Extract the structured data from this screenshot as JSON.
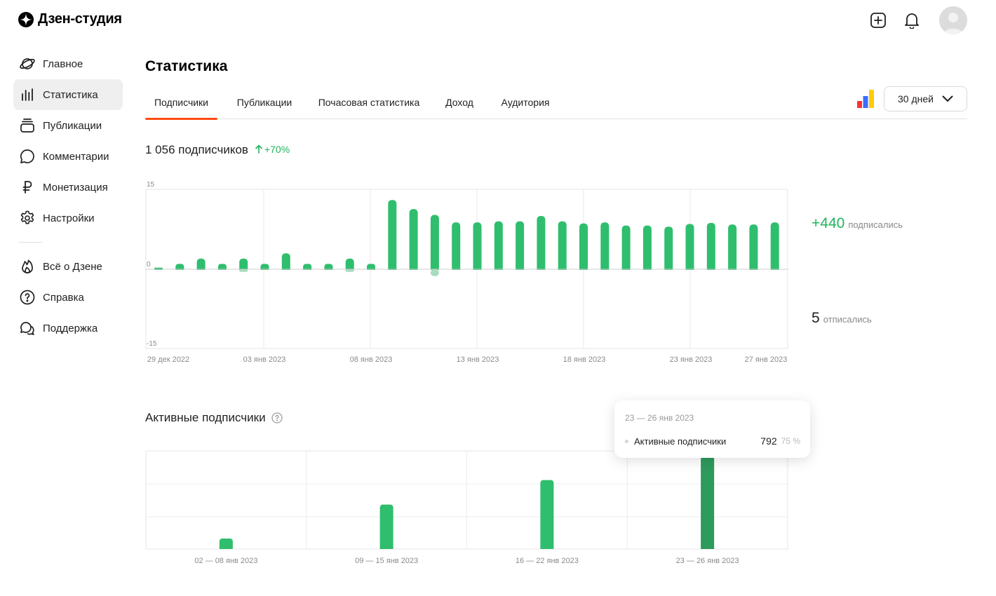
{
  "app": {
    "title": "Дзен-студия"
  },
  "header": {
    "icons": [
      "add-square-icon",
      "bell-icon",
      "avatar"
    ]
  },
  "sidebar": {
    "items": [
      {
        "label": "Главное",
        "icon": "planet-icon"
      },
      {
        "label": "Статистика",
        "icon": "bar-chart-icon",
        "active": true
      },
      {
        "label": "Публикации",
        "icon": "stack-icon"
      },
      {
        "label": "Комментарии",
        "icon": "comment-icon"
      },
      {
        "label": "Монетизация",
        "icon": "ruble-icon"
      },
      {
        "label": "Настройки",
        "icon": "gear-icon"
      }
    ],
    "secondary": [
      {
        "label": "Всё о Дзене",
        "icon": "flame-icon"
      },
      {
        "label": "Справка",
        "icon": "question-icon"
      },
      {
        "label": "Поддержка",
        "icon": "chat-bubbles-icon"
      }
    ]
  },
  "main": {
    "title": "Статистика",
    "tabs": [
      "Подписчики",
      "Публикации",
      "Почасовая статистика",
      "Доход",
      "Аудитория"
    ],
    "active_tab": "Подписчики",
    "period": "30 дней",
    "summary": {
      "count": "1 056 подписчиков",
      "growth": "+70%"
    },
    "side_stats": {
      "subscribed_value": "+440",
      "subscribed_label": "подписались",
      "unsubscribed_value": "5",
      "unsubscribed_label": "отписались"
    },
    "active_section_title": "Активные подписчики",
    "tooltip": {
      "date": "23 — 26 янв 2023",
      "label": "Активные подписчики",
      "value": "792",
      "percent": "75 %"
    }
  },
  "colors": {
    "accent": "#ff4a14",
    "green": "#2fbe6e",
    "green_dark": "#2e9a5c",
    "green_light": "#a8ddbf",
    "positive_text": "#1fb55c"
  },
  "chart_data": [
    {
      "type": "bar",
      "title": "",
      "ylim": [
        -15,
        15
      ],
      "y_ticks": [
        "15",
        "0",
        "-15"
      ],
      "x_ticks": [
        "29 дек 2022",
        "03 янв 2023",
        "08 янв 2023",
        "13 янв 2023",
        "18 янв 2023",
        "23 янв 2023",
        "27 янв 2023"
      ],
      "series": [
        {
          "values": [
            0.3,
            1,
            2,
            1,
            2,
            1,
            3,
            1,
            1,
            2,
            1,
            13,
            11.3,
            10.2,
            8.8,
            8.8,
            9,
            9,
            10,
            9,
            8.6,
            8.8,
            8.2,
            8.2,
            8,
            8.5,
            8.7,
            8.4,
            8.4,
            8.8
          ]
        },
        {
          "values": [
            0,
            0,
            0,
            0,
            -0.5,
            0,
            0,
            0,
            0,
            -0.5,
            0,
            0,
            0,
            -1.3,
            0,
            0,
            0,
            0,
            0,
            0,
            0,
            0,
            0,
            0,
            0,
            0,
            0,
            0,
            0,
            0
          ]
        }
      ]
    },
    {
      "type": "bar",
      "title": "Активные подписчики",
      "categories": [
        "02 — 08 янв 2023",
        "09 — 15 янв 2023",
        "16 — 22 янв 2023",
        "23 — 26 янв 2023"
      ],
      "series": [
        {
          "name": "Активные подписчики",
          "values": [
            90,
            380,
            590,
            792
          ]
        }
      ],
      "ylim": [
        0,
        840
      ],
      "highlighted": "23 — 26 янв 2023"
    }
  ]
}
